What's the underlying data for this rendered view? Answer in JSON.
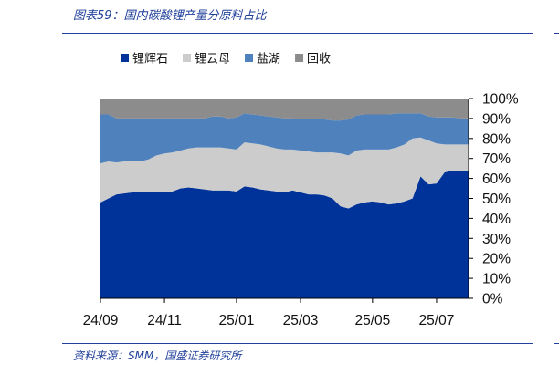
{
  "title": "图表59：国内碳酸锂产量分原料占比",
  "source": "资料来源：SMM，国盛证券研究所",
  "chart_data": {
    "type": "area",
    "stacking": "percent",
    "legend_position": "top",
    "ylim": [
      0,
      100
    ],
    "y_ticks": [
      "0%",
      "10%",
      "20%",
      "30%",
      "40%",
      "50%",
      "60%",
      "70%",
      "80%",
      "90%",
      "100%"
    ],
    "x_tick_labels": [
      "24/09",
      "24/11",
      "25/01",
      "25/03",
      "25/05",
      "25/07"
    ],
    "x_tick_indices": [
      0,
      8,
      17,
      25,
      34,
      42
    ],
    "x": [
      "24/09",
      "24/09",
      "24/10",
      "24/10",
      "24/10",
      "24/10",
      "24/11",
      "24/11",
      "24/11",
      "24/11",
      "24/12",
      "24/12",
      "24/12",
      "24/12",
      "25/01",
      "25/01",
      "25/01",
      "25/01",
      "25/02",
      "25/02",
      "25/02",
      "25/02",
      "25/03",
      "25/03",
      "25/03",
      "25/03",
      "25/04",
      "25/04",
      "25/04",
      "25/04",
      "25/05",
      "25/05",
      "25/05",
      "25/05",
      "25/06",
      "25/06",
      "25/06",
      "25/06",
      "25/07",
      "25/07",
      "25/07",
      "25/07",
      "25/08",
      "25/08",
      "25/08",
      "25/08",
      "25/08"
    ],
    "series": [
      {
        "name": "锂辉石",
        "color": "#003399",
        "values": [
          48,
          50,
          52,
          52.5,
          53,
          53.5,
          53,
          53.5,
          53,
          53.5,
          55,
          55.5,
          55,
          54.5,
          54,
          54,
          54,
          53.5,
          56,
          55.5,
          54.5,
          54,
          53.5,
          53,
          54,
          53,
          52,
          52,
          51.5,
          50,
          46,
          45,
          47,
          48,
          48.5,
          48,
          47,
          47.5,
          48.5,
          50,
          61,
          57,
          57.5,
          63,
          64,
          63.5,
          64
        ]
      },
      {
        "name": "锂云母",
        "color": "#cccccc",
        "values": [
          19.5,
          18.5,
          16,
          16,
          15.5,
          15,
          16.5,
          18,
          19.5,
          19.5,
          19,
          19.5,
          20.5,
          21,
          21.5,
          21.5,
          21,
          21,
          22,
          22,
          22.5,
          22,
          21.5,
          21.5,
          20.5,
          21,
          21.5,
          21,
          21.5,
          23,
          26.5,
          26.5,
          27,
          26.5,
          26,
          26.5,
          27.5,
          28,
          28.5,
          30,
          19.5,
          22,
          20,
          14,
          13,
          13.5,
          13
        ]
      },
      {
        "name": "盐湖",
        "color": "#4f81bd",
        "values": [
          24.5,
          23.5,
          22,
          21.5,
          21.5,
          21.5,
          20.5,
          18.5,
          17.5,
          17,
          16,
          15,
          14.5,
          14.5,
          15.5,
          15.5,
          15,
          16,
          14.5,
          14.5,
          14.5,
          15,
          15.5,
          15.5,
          15.5,
          15.5,
          16,
          16.5,
          16.5,
          16,
          16.5,
          18,
          17.5,
          17.5,
          17.5,
          17.5,
          17.5,
          17,
          15.5,
          12.5,
          12,
          12,
          13,
          13.5,
          13.5,
          13,
          13
        ]
      },
      {
        "name": "回收",
        "color": "#8c8c8c",
        "values": [
          8,
          8,
          10,
          10,
          10,
          10,
          10,
          10,
          10,
          10,
          10,
          10,
          10,
          10,
          9,
          9,
          10,
          9.5,
          7.5,
          8,
          8.5,
          9,
          9.5,
          10,
          10,
          10.5,
          10.5,
          10.5,
          10.5,
          11,
          11,
          10.5,
          8.5,
          8,
          8,
          8,
          8,
          7.5,
          7.5,
          7.5,
          7.5,
          9,
          9.5,
          9.5,
          9.5,
          10,
          10
        ]
      }
    ]
  }
}
